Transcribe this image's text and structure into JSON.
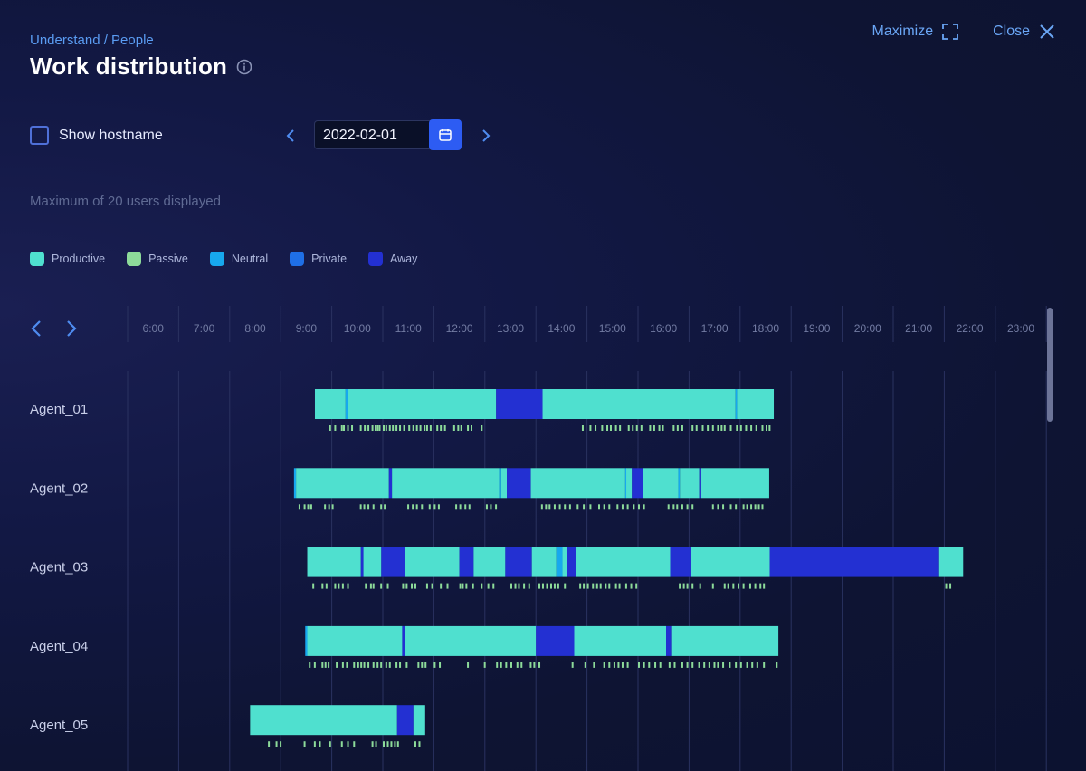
{
  "header": {
    "breadcrumb": "Understand / People",
    "title": "Work distribution",
    "maximize_label": "Maximize",
    "close_label": "Close"
  },
  "controls": {
    "show_hostname_label": "Show hostname",
    "show_hostname_checked": false,
    "date_value": "2022-02-01"
  },
  "note": "Maximum of 20 users displayed",
  "legend": [
    {
      "label": "Productive",
      "color": "#4fe0cf"
    },
    {
      "label": "Passive",
      "color": "#8ddb9a"
    },
    {
      "label": "Neutral",
      "color": "#17a8ee"
    },
    {
      "label": "Private",
      "color": "#1f6fe6"
    },
    {
      "label": "Away",
      "color": "#2330d2"
    }
  ],
  "chart_data": {
    "type": "timeline",
    "hours": [
      "6:00",
      "7:00",
      "8:00",
      "9:00",
      "10:00",
      "11:00",
      "12:00",
      "13:00",
      "14:00",
      "15:00",
      "16:00",
      "17:00",
      "18:00",
      "19:00",
      "20:00",
      "21:00",
      "22:00",
      "23:00"
    ],
    "agents": [
      {
        "name": "Agent_01",
        "segments": [
          {
            "start": 9.17,
            "end": 9.77,
            "category": "Productive"
          },
          {
            "start": 9.77,
            "end": 9.81,
            "category": "Neutral"
          },
          {
            "start": 9.81,
            "end": 12.72,
            "category": "Productive"
          },
          {
            "start": 12.72,
            "end": 13.63,
            "category": "Away"
          },
          {
            "start": 13.63,
            "end": 17.41,
            "category": "Productive"
          },
          {
            "start": 17.41,
            "end": 17.44,
            "category": "Neutral"
          },
          {
            "start": 17.44,
            "end": 18.16,
            "category": "Productive"
          }
        ],
        "passive_marks": [
          9.45,
          9.55,
          9.68,
          9.72,
          9.8,
          9.88,
          10.05,
          10.13,
          10.2,
          10.28,
          10.34,
          10.38,
          10.42,
          10.5,
          10.55,
          10.62,
          10.68,
          10.75,
          10.82,
          10.9,
          11.0,
          11.08,
          11.15,
          11.22,
          11.3,
          11.35,
          11.42,
          11.55,
          11.62,
          11.7,
          11.88,
          11.96,
          12.02,
          12.15,
          12.22,
          12.42,
          14.4,
          14.55,
          14.65,
          14.78,
          14.88,
          14.95,
          15.05,
          15.13,
          15.3,
          15.38,
          15.46,
          15.55,
          15.72,
          15.8,
          15.9,
          15.97,
          16.18,
          16.26,
          16.35,
          16.55,
          16.63,
          16.75,
          16.85,
          16.95,
          17.05,
          17.12,
          17.18,
          17.3,
          17.42,
          17.5,
          17.6,
          17.7,
          17.8,
          17.92,
          18.0,
          18.06
        ]
      },
      {
        "name": "Agent_02",
        "segments": [
          {
            "start": 8.76,
            "end": 8.8,
            "category": "Neutral"
          },
          {
            "start": 8.8,
            "end": 10.62,
            "category": "Productive"
          },
          {
            "start": 10.62,
            "end": 10.68,
            "category": "Away"
          },
          {
            "start": 10.68,
            "end": 12.78,
            "category": "Productive"
          },
          {
            "start": 12.78,
            "end": 12.82,
            "category": "Neutral"
          },
          {
            "start": 12.82,
            "end": 12.93,
            "category": "Productive"
          },
          {
            "start": 12.93,
            "end": 13.4,
            "category": "Away"
          },
          {
            "start": 13.4,
            "end": 15.25,
            "category": "Productive"
          },
          {
            "start": 15.25,
            "end": 15.27,
            "category": "Neutral"
          },
          {
            "start": 15.27,
            "end": 15.38,
            "category": "Productive"
          },
          {
            "start": 15.38,
            "end": 15.6,
            "category": "Away"
          },
          {
            "start": 15.6,
            "end": 16.29,
            "category": "Productive"
          },
          {
            "start": 16.29,
            "end": 16.32,
            "category": "Neutral"
          },
          {
            "start": 16.32,
            "end": 16.7,
            "category": "Productive"
          },
          {
            "start": 16.7,
            "end": 16.74,
            "category": "Away"
          },
          {
            "start": 16.74,
            "end": 18.07,
            "category": "Productive"
          }
        ],
        "passive_marks": [
          8.85,
          8.95,
          9.02,
          9.08,
          9.35,
          9.43,
          9.5,
          10.05,
          10.12,
          10.2,
          10.3,
          10.45,
          10.52,
          10.98,
          11.07,
          11.15,
          11.25,
          11.4,
          11.5,
          11.58,
          11.92,
          12.0,
          12.1,
          12.18,
          12.52,
          12.6,
          12.7,
          13.6,
          13.68,
          13.75,
          13.85,
          13.95,
          14.05,
          14.15,
          14.3,
          14.42,
          14.55,
          14.72,
          14.82,
          14.92,
          15.08,
          15.18,
          15.28,
          15.4,
          15.5,
          15.6,
          16.08,
          16.18,
          16.25,
          16.35,
          16.45,
          16.55,
          16.95,
          17.05,
          17.15,
          17.3,
          17.4,
          17.55,
          17.62,
          17.7,
          17.78,
          17.85,
          17.92
        ]
      },
      {
        "name": "Agent_03",
        "segments": [
          {
            "start": 9.02,
            "end": 10.07,
            "category": "Productive"
          },
          {
            "start": 10.07,
            "end": 10.12,
            "category": "Away"
          },
          {
            "start": 10.12,
            "end": 10.47,
            "category": "Productive"
          },
          {
            "start": 10.47,
            "end": 10.93,
            "category": "Away"
          },
          {
            "start": 10.93,
            "end": 12.0,
            "category": "Productive"
          },
          {
            "start": 12.0,
            "end": 12.28,
            "category": "Away"
          },
          {
            "start": 12.28,
            "end": 12.9,
            "category": "Productive"
          },
          {
            "start": 12.9,
            "end": 13.42,
            "category": "Away"
          },
          {
            "start": 13.42,
            "end": 13.9,
            "category": "Productive"
          },
          {
            "start": 13.9,
            "end": 14.02,
            "category": "Neutral"
          },
          {
            "start": 14.02,
            "end": 14.1,
            "category": "Productive"
          },
          {
            "start": 14.1,
            "end": 14.28,
            "category": "Away"
          },
          {
            "start": 14.28,
            "end": 16.13,
            "category": "Productive"
          },
          {
            "start": 16.13,
            "end": 16.53,
            "category": "Away"
          },
          {
            "start": 16.53,
            "end": 18.08,
            "category": "Productive"
          },
          {
            "start": 18.08,
            "end": 21.4,
            "category": "Away"
          },
          {
            "start": 21.4,
            "end": 21.87,
            "category": "Productive"
          }
        ],
        "passive_marks": [
          9.12,
          9.3,
          9.38,
          9.55,
          9.62,
          9.7,
          9.8,
          10.15,
          10.25,
          10.3,
          10.45,
          10.58,
          10.88,
          10.95,
          11.05,
          11.12,
          11.35,
          11.45,
          11.62,
          11.75,
          12.0,
          12.05,
          12.12,
          12.25,
          12.42,
          12.55,
          12.65,
          13.0,
          13.08,
          13.15,
          13.25,
          13.35,
          13.55,
          13.62,
          13.7,
          13.78,
          13.85,
          13.92,
          14.05,
          14.35,
          14.42,
          14.5,
          14.6,
          14.68,
          14.75,
          14.85,
          14.92,
          15.05,
          15.12,
          15.25,
          15.35,
          15.45,
          16.3,
          16.38,
          16.45,
          16.55,
          16.7,
          16.95,
          17.18,
          17.25,
          17.35,
          17.45,
          17.55,
          17.68,
          17.78,
          17.88,
          17.95,
          21.52,
          21.6
        ]
      },
      {
        "name": "Agent_04",
        "segments": [
          {
            "start": 8.98,
            "end": 9.02,
            "category": "Neutral"
          },
          {
            "start": 9.02,
            "end": 10.88,
            "category": "Productive"
          },
          {
            "start": 10.88,
            "end": 10.93,
            "category": "Away"
          },
          {
            "start": 10.93,
            "end": 13.5,
            "category": "Productive"
          },
          {
            "start": 13.5,
            "end": 14.25,
            "category": "Away"
          },
          {
            "start": 14.25,
            "end": 16.05,
            "category": "Productive"
          },
          {
            "start": 16.05,
            "end": 16.15,
            "category": "Away"
          },
          {
            "start": 16.15,
            "end": 18.25,
            "category": "Productive"
          }
        ],
        "passive_marks": [
          9.05,
          9.15,
          9.3,
          9.36,
          9.42,
          9.58,
          9.7,
          9.78,
          9.92,
          10.0,
          10.06,
          10.12,
          10.2,
          10.3,
          10.38,
          10.45,
          10.55,
          10.62,
          10.75,
          10.82,
          10.95,
          11.18,
          11.25,
          11.32,
          11.5,
          11.6,
          12.15,
          12.48,
          12.72,
          12.8,
          12.9,
          13.0,
          13.12,
          13.2,
          13.38,
          13.45,
          13.55,
          14.2,
          14.45,
          14.62,
          14.82,
          14.92,
          15.02,
          15.1,
          15.18,
          15.28,
          15.5,
          15.6,
          15.7,
          15.82,
          15.92,
          16.1,
          16.2,
          16.35,
          16.45,
          16.55,
          16.68,
          16.78,
          16.88,
          16.98,
          17.05,
          17.15,
          17.28,
          17.4,
          17.5,
          17.62,
          17.72,
          17.82,
          17.95,
          18.2
        ]
      },
      {
        "name": "Agent_05",
        "segments": [
          {
            "start": 7.9,
            "end": 10.78,
            "category": "Productive"
          },
          {
            "start": 10.78,
            "end": 11.1,
            "category": "Away"
          },
          {
            "start": 11.1,
            "end": 11.33,
            "category": "Productive"
          }
        ],
        "passive_marks": [
          8.25,
          8.4,
          8.48,
          8.95,
          9.15,
          9.25,
          9.45,
          9.68,
          9.8,
          9.92,
          10.28,
          10.35,
          10.5,
          10.58,
          10.65,
          10.72,
          10.78,
          11.12,
          11.2
        ]
      }
    ]
  }
}
